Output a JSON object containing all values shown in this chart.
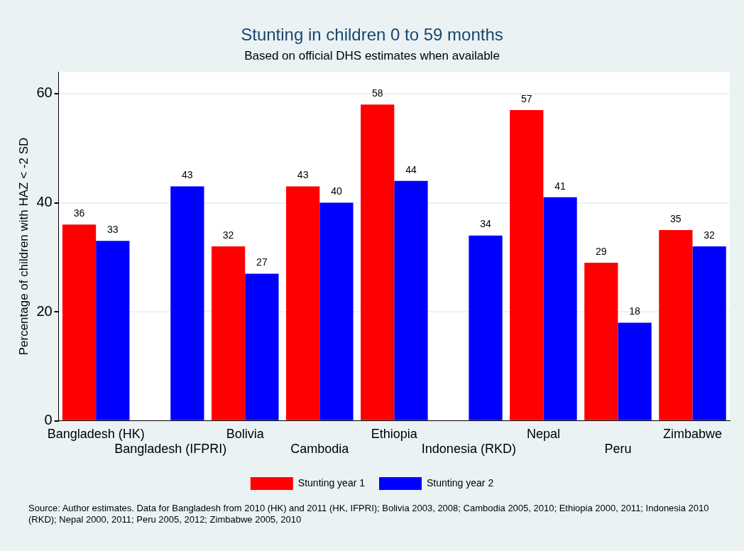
{
  "chart_data": {
    "type": "bar",
    "title": "Stunting in children 0 to 59 months",
    "subtitle": "Based on official DHS estimates when available",
    "ylabel": "Percentage of children with HAZ < -2 SD",
    "categories": [
      "Bangladesh (HK)",
      "Bangladesh (IFPRI)",
      "Bolivia",
      "Cambodia",
      "Ethiopia",
      "Indonesia (RKD)",
      "Nepal",
      "Peru",
      "Zimbabwe"
    ],
    "series": [
      {
        "name": "Stunting year 1",
        "color": "#ff0000",
        "values": [
          36,
          null,
          32,
          43,
          58,
          null,
          57,
          29,
          35
        ]
      },
      {
        "name": "Stunting year 2",
        "color": "#0000ff",
        "values": [
          33,
          43,
          27,
          40,
          44,
          34,
          41,
          18,
          32
        ]
      }
    ],
    "ylim": [
      0,
      64
    ],
    "yticks": [
      0,
      20,
      40,
      60
    ],
    "grid": "y",
    "legend": "bottom",
    "data_labels": true,
    "annotations": [
      "Source: Author estimates. Data for Bangladesh from 2010 (HK) and 2011 (HK, IFPRI); Bolivia 2003, 2008; Cambodia 2005, 2010; Ethiopia 2000, 2011; Indonesia 2010 (RKD); Nepal 2000, 2011; Peru 2005, 2012; Zimbabwe 2005, 2010"
    ]
  }
}
